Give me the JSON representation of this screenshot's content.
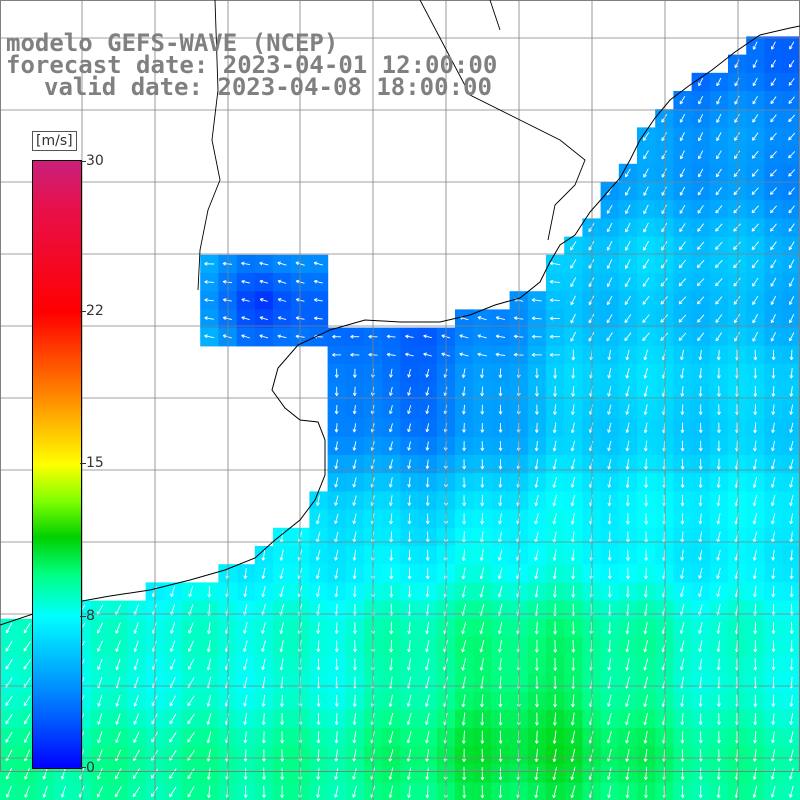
{
  "title": {
    "line1": "modelo GEFS-WAVE (NCEP)",
    "line2": "forecast date: 2023-04-01 12:00:00",
    "line3": "valid date: 2023-04-08 18:00:00"
  },
  "colorbar": {
    "unit": "[m/s]",
    "ticks": [
      "30",
      "22",
      "15",
      "8",
      "0"
    ],
    "min_value": 0,
    "max_value": 30
  },
  "map": {
    "variable": "wind speed (m/s) with direction arrows",
    "dominant_range_m_s": [
      4,
      10
    ],
    "arrow_color": "#ffffff",
    "land_color": "#ffffff",
    "grid_color": "#808080",
    "coast_color": "#000000"
  }
}
